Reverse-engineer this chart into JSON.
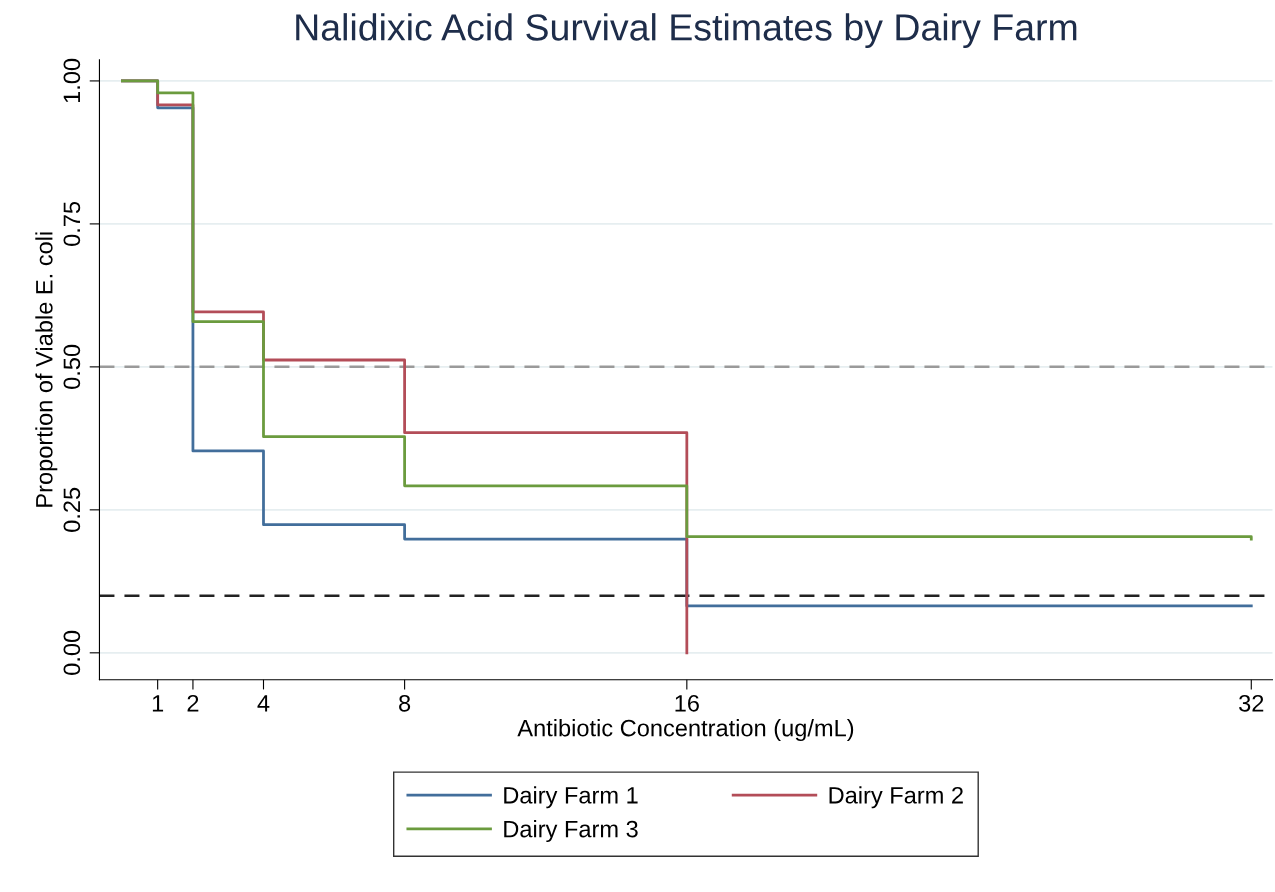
{
  "chart_data": {
    "type": "step",
    "title": "Nalidixic Acid Survival Estimates by Dairy Farm",
    "xlabel": "Antibiotic Concentration (ug/mL)",
    "ylabel": "Proportion of Viable E. coli",
    "xlim": [
      -0.65,
      32.6
    ],
    "ylim": [
      -0.047,
      1.037
    ],
    "xticks": [
      1,
      2,
      4,
      8,
      16,
      32
    ],
    "yticks": [
      {
        "value": 0,
        "label": "0.00"
      },
      {
        "value": 0.25,
        "label": "0.25"
      },
      {
        "value": 0.5,
        "label": "0.50"
      },
      {
        "value": 0.75,
        "label": "0.75"
      },
      {
        "value": 1,
        "label": "1.00"
      }
    ],
    "grid": "y",
    "legend": "bottom",
    "line_style": "solid",
    "series": [
      {
        "name": "Dairy Farm 1",
        "color": "#426e9b",
        "x": [
          0,
          1,
          2,
          4,
          8,
          16,
          32
        ],
        "values": [
          1,
          0.953,
          0.353,
          0.224,
          0.199,
          0.082,
          0.082
        ]
      },
      {
        "name": "Dairy Farm 2",
        "color": "#b34d58",
        "x": [
          0,
          1,
          2,
          4,
          8,
          16
        ],
        "values": [
          1,
          0.958,
          0.596,
          0.512,
          0.385,
          0
        ]
      },
      {
        "name": "Dairy Farm 3",
        "color": "#6b9b3e",
        "x": [
          0,
          1,
          2,
          4,
          8,
          16,
          32
        ],
        "values": [
          1,
          0.979,
          0.579,
          0.378,
          0.292,
          0.203,
          0.199
        ]
      }
    ],
    "ref_lines": [
      {
        "axis": "y",
        "value": 0.5,
        "color": "#9a9a9a",
        "line_style": "dashed"
      },
      {
        "axis": "y",
        "value": 0.1,
        "color": "#222222",
        "line_style": "dashed"
      }
    ]
  }
}
